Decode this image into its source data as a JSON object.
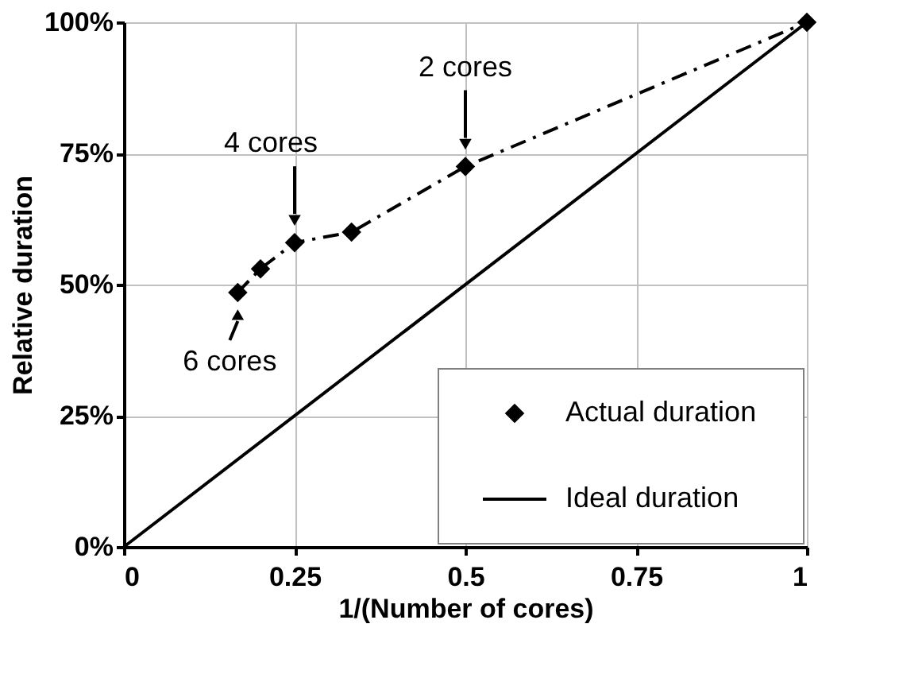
{
  "chart_data": {
    "type": "line",
    "xlabel": "1/(Number of cores)",
    "ylabel": "Relative duration",
    "xlim": [
      0,
      1
    ],
    "xticks": [
      0,
      0.25,
      0.5,
      0.75,
      1
    ],
    "ylim": [
      0,
      100
    ],
    "yticks": [
      {
        "value": 0,
        "label": "0%"
      },
      {
        "value": 25,
        "label": "25%"
      },
      {
        "value": 50,
        "label": "50%"
      },
      {
        "value": 75,
        "label": "75%"
      },
      {
        "value": 100,
        "label": "100%"
      }
    ],
    "grid": true,
    "legend": "bottom right",
    "series": [
      {
        "name": "Actual duration",
        "color": "#000000",
        "marker": "diamond",
        "line_style": "dashed",
        "x": [
          0.1667,
          0.2,
          0.25,
          0.3333,
          0.5,
          1
        ],
        "values": [
          48.5,
          53,
          58,
          60,
          72.5,
          100
        ]
      },
      {
        "name": "Ideal duration",
        "color": "#000000",
        "marker": "none",
        "line_style": "solid",
        "x": [
          0,
          1
        ],
        "values": [
          0,
          100
        ]
      }
    ],
    "annotations": [
      {
        "text": "2 cores",
        "x": 0.5,
        "y": 72.5
      },
      {
        "text": "4 cores",
        "x": 0.25,
        "y": 58
      },
      {
        "text": "6 cores",
        "x": 0.1667,
        "y": 48.5
      }
    ]
  }
}
